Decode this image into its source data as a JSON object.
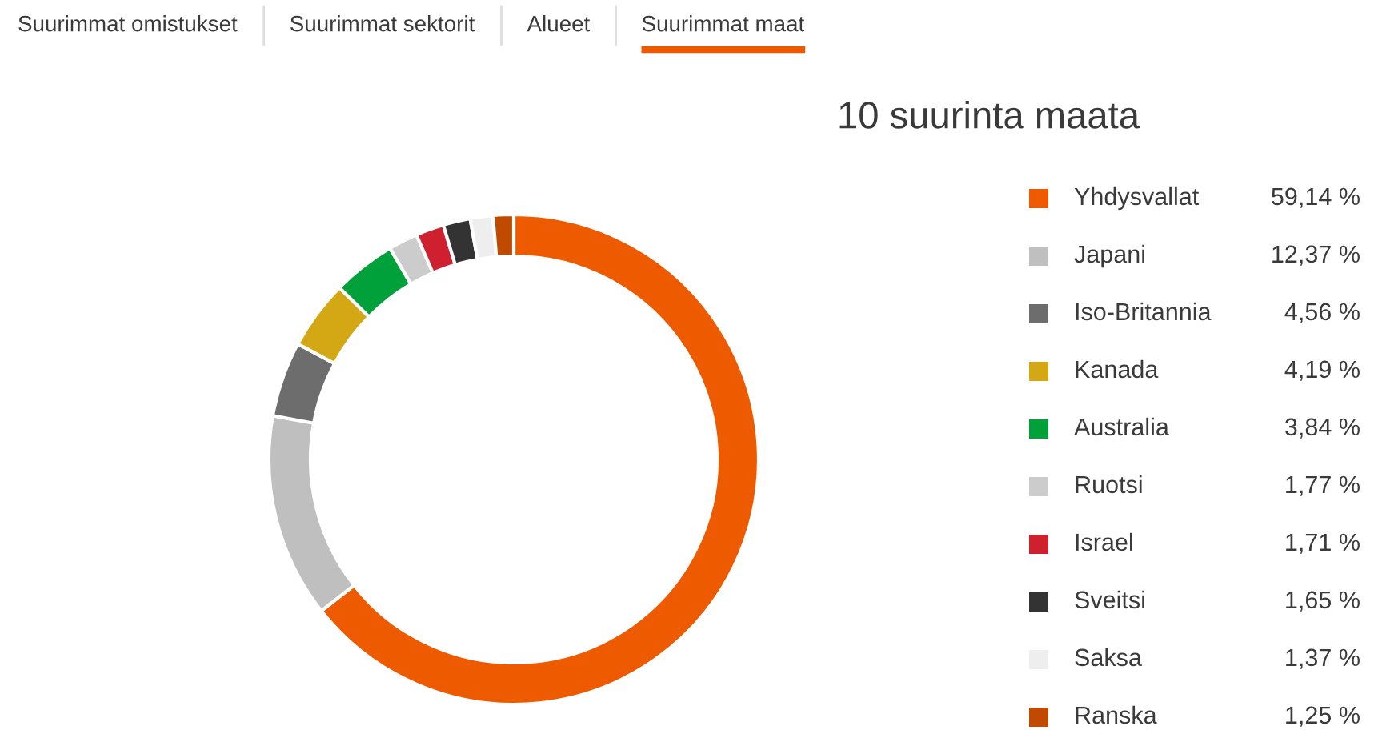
{
  "chart_data": {
    "type": "donut",
    "title": "10 suurinta maata",
    "categories": [
      "Yhdysvallat",
      "Japani",
      "Iso-Britannia",
      "Kanada",
      "Australia",
      "Ruotsi",
      "Israel",
      "Sveitsi",
      "Saksa",
      "Ranska"
    ],
    "values": [
      59.14,
      12.37,
      4.56,
      4.19,
      3.84,
      1.77,
      1.71,
      1.65,
      1.37,
      1.25
    ],
    "value_labels": [
      "59,14 %",
      "12,37 %",
      "4,56 %",
      "4,19 %",
      "3,84 %",
      "1,77 %",
      "1,71 %",
      "1,65 %",
      "1,37 %",
      "1,25 %"
    ],
    "colors": [
      "#ee5a00",
      "#bfbfbf",
      "#6d6d6d",
      "#d4a714",
      "#00a03b",
      "#cccccc",
      "#cf2030",
      "#333333",
      "#eeeeee",
      "#c04a00"
    ],
    "legend": "right",
    "annotations": [
      "Suurimmat omistukset",
      "Suurimmat sektorit",
      "Alueet",
      "Suurimmat maat"
    ]
  }
}
